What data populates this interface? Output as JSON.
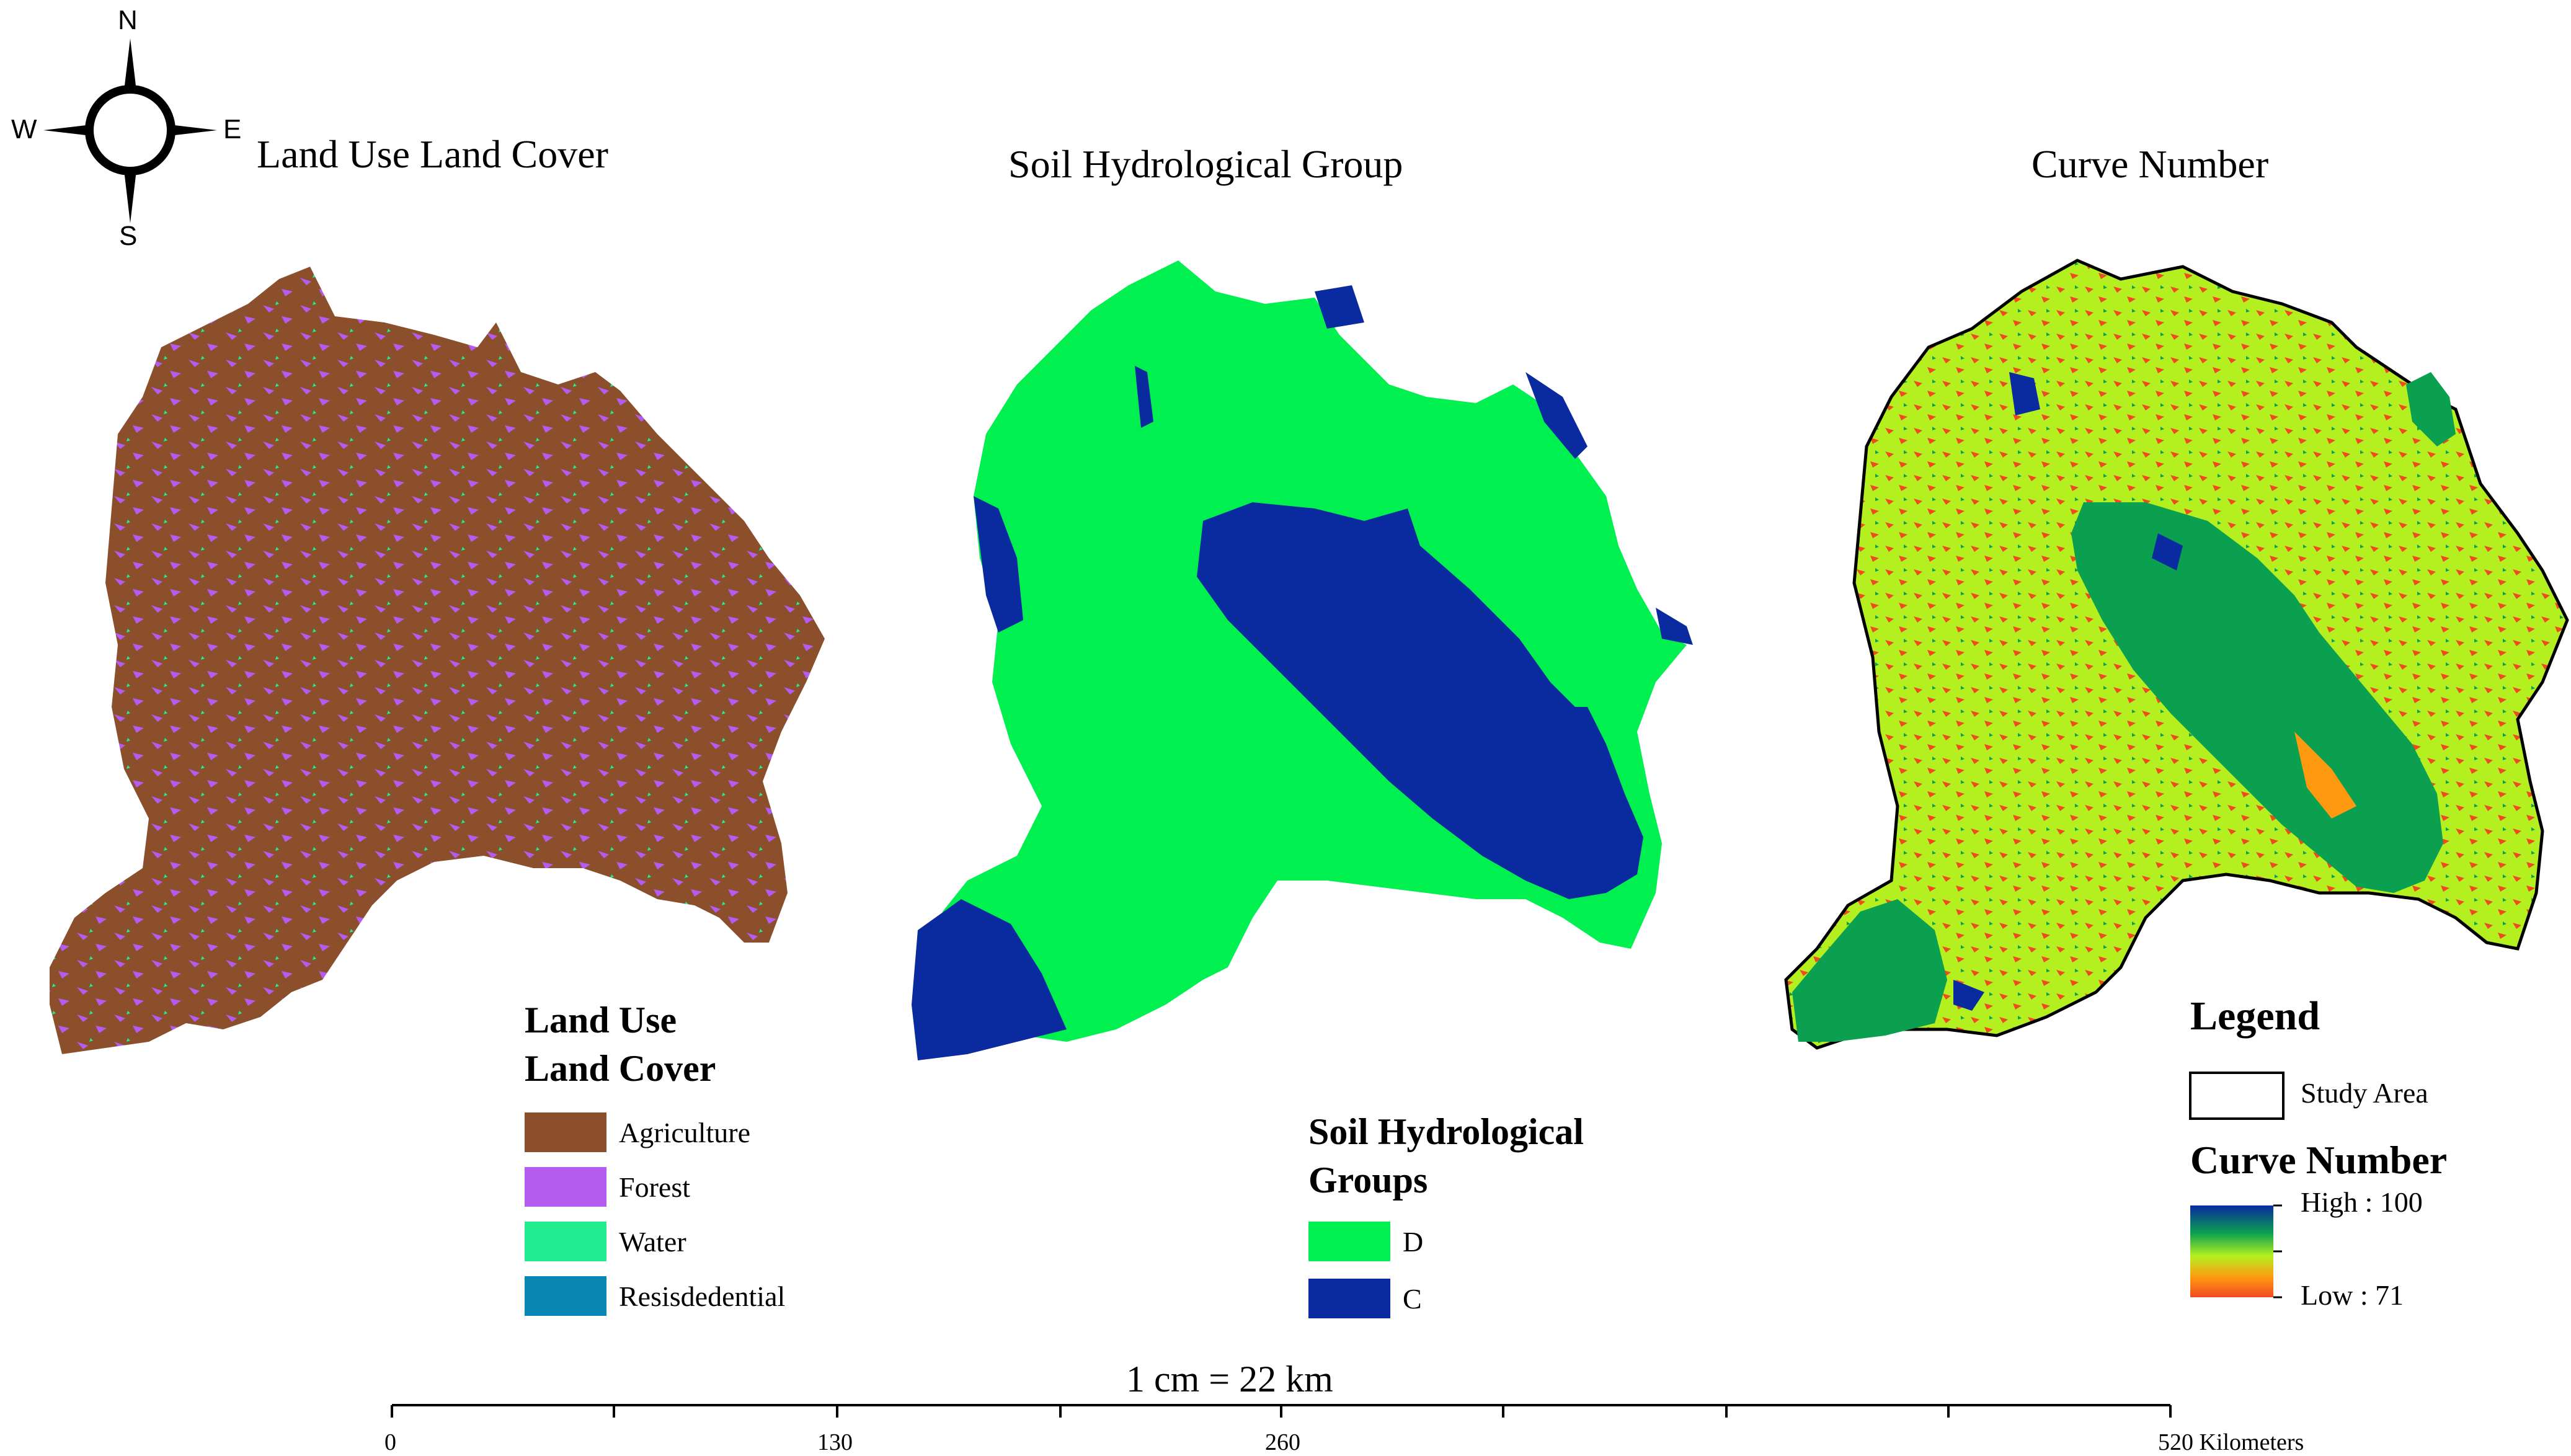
{
  "compass": {
    "n": "N",
    "s": "S",
    "e": "E",
    "w": "W"
  },
  "maps": {
    "lulc_title": "Land Use Land Cover",
    "soil_title": "Soil Hydrological Group",
    "cn_title": "Curve Number"
  },
  "lulc_legend": {
    "title_line1": "Land Use",
    "title_line2": "Land Cover",
    "items": [
      {
        "label": "Agriculture",
        "color": "#8b4f2c"
      },
      {
        "label": "Forest",
        "color": "#b45cf0"
      },
      {
        "label": "Water",
        "color": "#22ec90"
      },
      {
        "label": "Resisdedential",
        "color": "#0a86b5"
      }
    ]
  },
  "soil_legend": {
    "title_line1": "Soil Hydrological",
    "title_line2": "Groups",
    "items": [
      {
        "label": "D",
        "color": "#00f050"
      },
      {
        "label": "C",
        "color": "#0a2aa0"
      }
    ]
  },
  "cn_legend": {
    "title": "Legend",
    "study_area": "Study Area",
    "ramp_title": "Curve Number",
    "high": "High : 100",
    "low": "Low : 71",
    "ramp_colors": [
      "#0a2aa0",
      "#0aa050",
      "#b4f020",
      "#ff9a10",
      "#f04a20"
    ]
  },
  "scale": {
    "ratio": "1 cm = 22 km",
    "unit": "Kilometers",
    "ticks": [
      "0",
      "130",
      "260",
      "520"
    ]
  }
}
